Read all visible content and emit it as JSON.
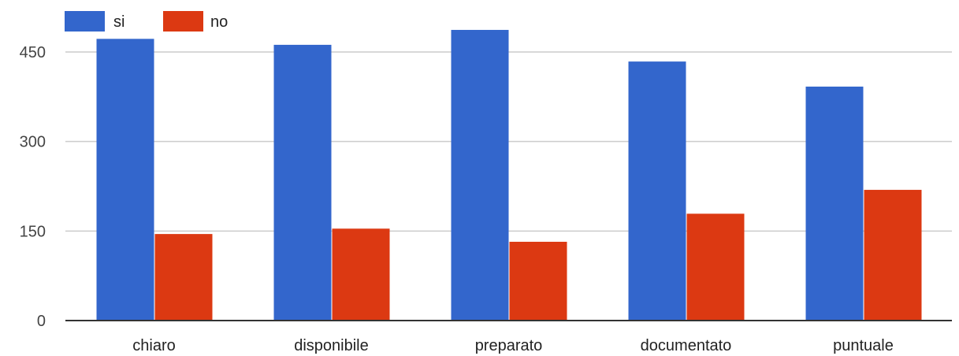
{
  "chart_data": {
    "type": "bar",
    "categories": [
      "chiaro",
      "disponibile",
      "preparato",
      "documentato",
      "puntuale"
    ],
    "series": [
      {
        "name": "si",
        "values": [
          472,
          462,
          487,
          434,
          392
        ]
      },
      {
        "name": "no",
        "values": [
          145,
          154,
          132,
          179,
          219
        ]
      }
    ],
    "colors": {
      "si": "#3366cc",
      "no": "#dc3912"
    },
    "yticks": [
      "0",
      "150",
      "300",
      "450"
    ],
    "ylim": [
      0,
      450
    ],
    "grid": true,
    "legend_position": "top-left",
    "title": "",
    "xlabel": "",
    "ylabel": ""
  }
}
